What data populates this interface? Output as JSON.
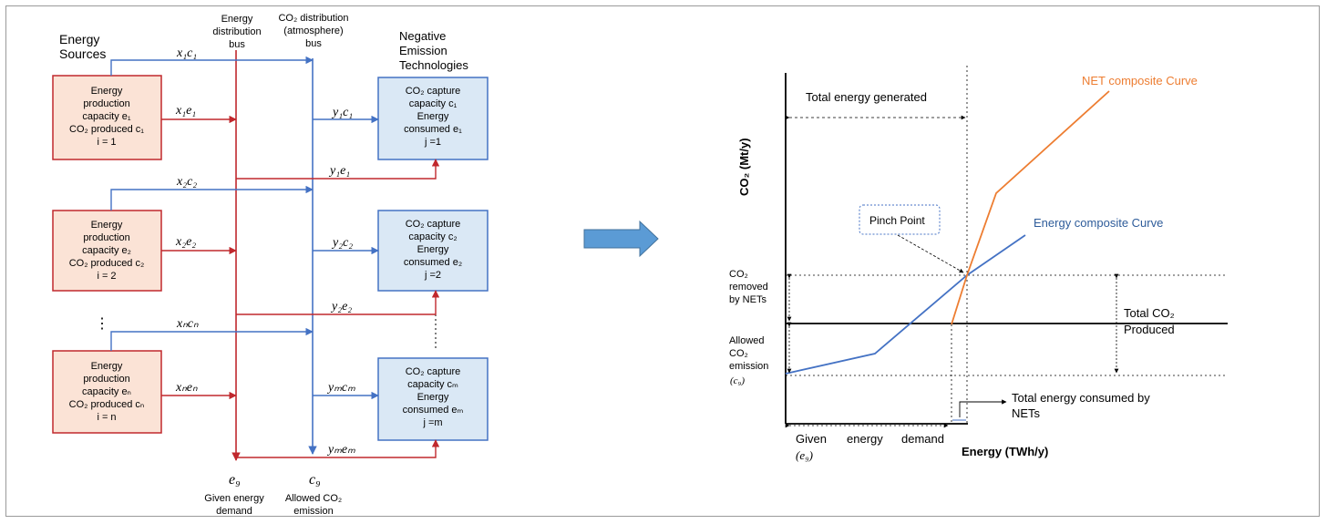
{
  "left_diagram": {
    "energy_sources_label": [
      "Energy",
      "Sources"
    ],
    "energy_bus_label": [
      "Energy",
      "distribution",
      "bus"
    ],
    "co2_bus_label": [
      "CO₂ distribution",
      "(atmosphere)",
      "bus"
    ],
    "nets_label": [
      "Negative",
      "Emission",
      "Technologies"
    ],
    "sources": [
      {
        "lines": [
          "Energy",
          "production",
          "capacity e₁",
          "CO₂ produced c₁",
          "i = 1"
        ]
      },
      {
        "lines": [
          "Energy",
          "production",
          "capacity e₂",
          "CO₂ produced c₂",
          "i = 2"
        ]
      },
      {
        "lines": [
          "Energy",
          "production",
          "capacity eₙ",
          "CO₂ produced cₙ",
          "i = n"
        ]
      }
    ],
    "nets": [
      {
        "lines": [
          "CO₂ capture",
          "capacity c₁",
          "Energy",
          "consumed e₁",
          "j =1"
        ]
      },
      {
        "lines": [
          "CO₂ capture",
          "capacity c₂",
          "Energy",
          "consumed e₂",
          "j =2"
        ]
      },
      {
        "lines": [
          "CO₂ capture",
          "capacity cₘ",
          "Energy",
          "consumed eₘ",
          "j =m"
        ]
      }
    ],
    "flow_labels": {
      "x1c1": "x₁c₁",
      "x1e1": "x₁e₁",
      "y1c1": "y₁c₁",
      "y1e1": "y₁e₁",
      "x2c2": "x₂c₂",
      "x2e2": "x₂e₂",
      "y2c2": "y₂c₂",
      "y2e2": "y₂e₂",
      "xncn": "xₙcₙ",
      "xnen": "xₙeₙ",
      "ymcm": "yₘcₘ",
      "ymem": "yₘeₘ"
    },
    "dots": "⋮",
    "eg_symbol": "e₉",
    "eg_caption": [
      "Given energy",
      "demand"
    ],
    "cg_symbol": "c₉",
    "cg_caption": [
      "Allowed CO₂",
      "emission"
    ],
    "colors": {
      "red": "#c0282d",
      "blue": "#4472c4",
      "source_fill": "#fbe3d6",
      "net_fill": "#dae8f5"
    }
  },
  "right_chart": {
    "y_axis_label": "CO₂ (Mt/y)",
    "x_axis_label": "Energy (TWh/y)",
    "total_energy_generated": "Total energy generated",
    "net_curve_label": "NET  composite Curve",
    "energy_curve_label": "Energy composite Curve",
    "pinch_point": "Pinch Point",
    "co2_removed": [
      "CO₂",
      "removed",
      "by NETs"
    ],
    "allowed_emission": [
      "Allowed",
      "CO₂",
      "emission",
      "(c₉)"
    ],
    "total_co2": [
      "Total CO₂",
      "Produced"
    ],
    "energy_consumed_nets": [
      "Total energy consumed by",
      "NETs"
    ],
    "given_energy_demand": [
      "Given",
      "energy",
      "demand"
    ],
    "given_energy_demand_sym": "(e₉)",
    "colors": {
      "net": "#ed7d31",
      "energy": "#4472c4",
      "axis": "#000000"
    }
  },
  "arrow_color": "#5b9bd5"
}
